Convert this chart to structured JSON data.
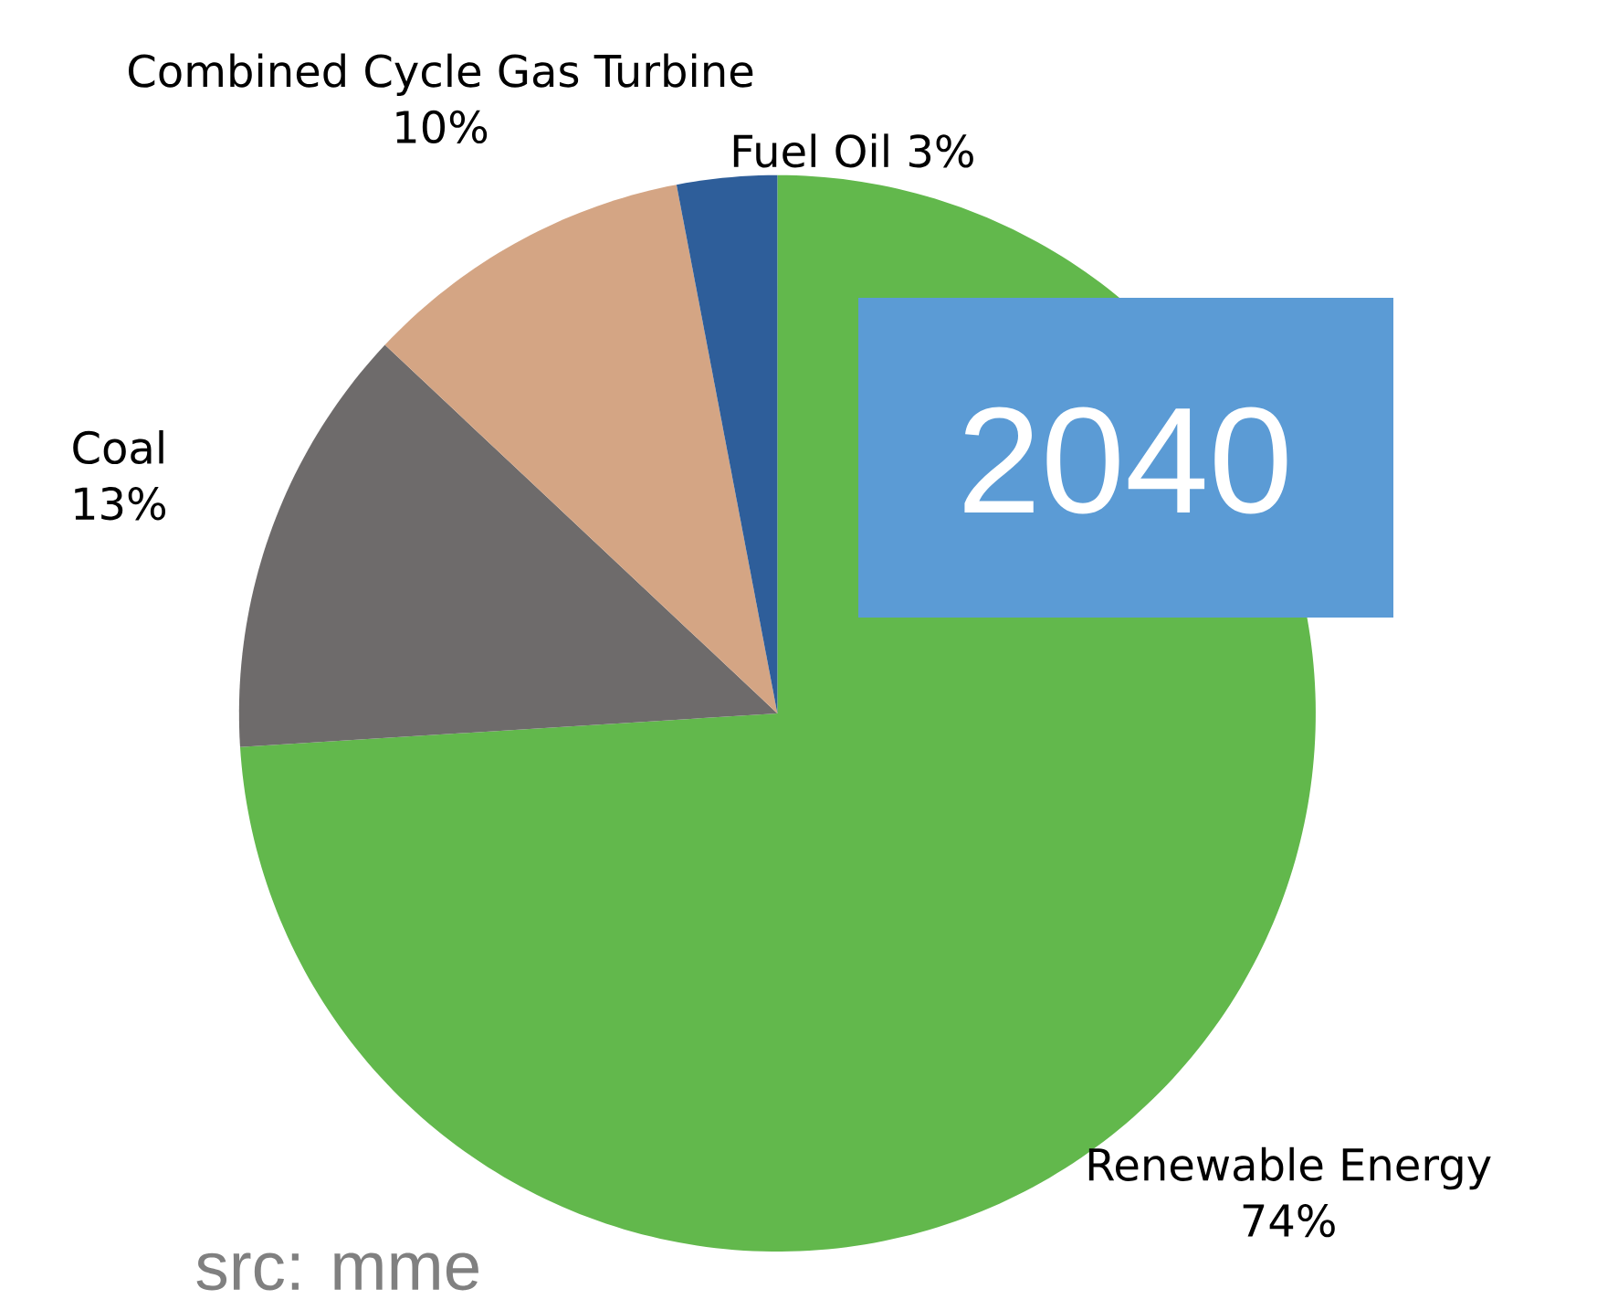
{
  "chart_data": {
    "type": "pie",
    "title": "2040",
    "categories": [
      "Renewable Energy",
      "Coal",
      "Combined Cycle Gas Turbine",
      "Fuel Oil"
    ],
    "values": [
      74,
      13,
      10,
      3
    ],
    "colors": [
      "#62b84c",
      "#6e6b6b",
      "#d4a584",
      "#2e5e9a"
    ],
    "value_labels": [
      "74%",
      "13%",
      "10%",
      "3%"
    ],
    "annotations": [
      "src: mme"
    ]
  }
}
